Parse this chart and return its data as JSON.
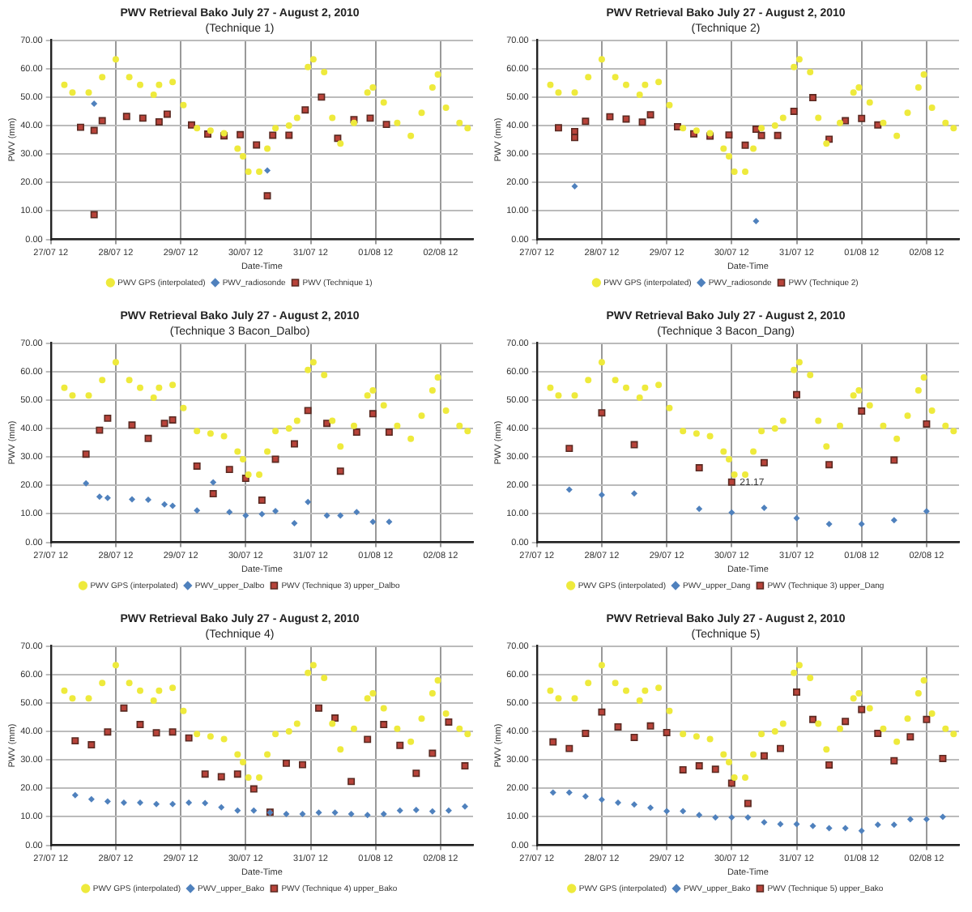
{
  "chart_data": [
    {
      "type": "scatter",
      "title": "PWV Retrieval Bako July 27 - August 2, 2010",
      "subtitle": "(Technique 1)",
      "xlabel": "Date-Time",
      "ylabel": "PWV (mm)",
      "xlim": [
        "2010-07-27T12:00",
        "2010-08-03T00:00"
      ],
      "xticks": [
        {
          "value": "2010-07-27T12:00",
          "label": "27/07 12"
        },
        {
          "value": "2010-07-28T12:00",
          "label": "28/07 12"
        },
        {
          "value": "2010-07-29T12:00",
          "label": "29/07 12"
        },
        {
          "value": "2010-07-30T12:00",
          "label": "30/07 12"
        },
        {
          "value": "2010-07-31T12:00",
          "label": "31/07 12"
        },
        {
          "value": "2010-08-01T12:00",
          "label": "01/08 12"
        },
        {
          "value": "2010-08-02T12:00",
          "label": "02/08 12"
        }
      ],
      "ylim": [
        0,
        70
      ],
      "yticks": [
        {
          "value": 0,
          "label": "0.00"
        },
        {
          "value": 10,
          "label": "10.00"
        },
        {
          "value": 20,
          "label": "20.00"
        },
        {
          "value": 30,
          "label": "30.00"
        },
        {
          "value": 40,
          "label": "40.00"
        },
        {
          "value": 50,
          "label": "50.00"
        },
        {
          "value": 60,
          "label": "60.00"
        },
        {
          "value": 70,
          "label": "70.00"
        }
      ],
      "grid": true,
      "legend": "bottom",
      "series": [
        {
          "name": "PWV GPS (interpolated)",
          "color": "#eeea3c",
          "marker": "circle",
          "x": [
            "2010-07-27T17:00",
            "2010-07-27T20:00",
            "2010-07-28T02:00",
            "2010-07-28T07:00",
            "2010-07-28T12:00",
            "2010-07-28T17:00",
            "2010-07-28T21:00",
            "2010-07-29T02:00",
            "2010-07-29T04:00",
            "2010-07-29T09:00",
            "2010-07-29T13:00",
            "2010-07-29T18:00",
            "2010-07-29T23:00",
            "2010-07-30T04:00",
            "2010-07-30T09:00",
            "2010-07-30T11:00",
            "2010-07-30T13:00",
            "2010-07-30T17:00",
            "2010-07-30T20:00",
            "2010-07-30T23:00",
            "2010-07-31T04:00",
            "2010-07-31T07:00",
            "2010-07-31T11:00",
            "2010-07-31T13:00",
            "2010-07-31T17:00",
            "2010-07-31T20:00",
            "2010-07-31T23:00",
            "2010-08-01T04:00",
            "2010-08-01T09:00",
            "2010-08-01T11:00",
            "2010-08-01T15:00",
            "2010-08-01T20:00",
            "2010-08-02T01:00",
            "2010-08-02T05:00",
            "2010-08-02T09:00",
            "2010-08-02T11:00",
            "2010-08-02T14:00",
            "2010-08-02T19:00",
            "2010-08-02T22:00"
          ],
          "values": [
            54.3,
            51.6,
            51.6,
            57,
            63.3,
            57,
            54.3,
            50.8,
            54.3,
            55.3,
            47.2,
            39.1,
            38.2,
            37.3,
            31.9,
            29.2,
            23.8,
            23.8,
            31.9,
            39.1,
            40,
            42.7,
            60.6,
            63.3,
            58.8,
            42.7,
            33.7,
            40.9,
            51.6,
            53.4,
            48.1,
            40.9,
            36.4,
            44.5,
            53.4,
            57.9,
            46.3,
            40.9,
            39.1
          ]
        },
        {
          "name": "PWV_radiosonde",
          "color": "#4f81bd",
          "marker": "diamond",
          "x": [
            "2010-07-28T04:00",
            "2010-07-30T20:00"
          ],
          "values": [
            47.7,
            24.2
          ]
        },
        {
          "name": "PWV (Technique 1)",
          "color": "#b8433a",
          "marker": "square",
          "x": [
            "2010-07-27T23:00",
            "2010-07-28T04:00",
            "2010-07-28T04:00",
            "2010-07-28T07:00",
            "2010-07-28T16:00",
            "2010-07-28T22:00",
            "2010-07-29T04:00",
            "2010-07-29T07:00",
            "2010-07-29T16:00",
            "2010-07-29T22:00",
            "2010-07-30T04:00",
            "2010-07-30T10:00",
            "2010-07-30T16:00",
            "2010-07-30T20:00",
            "2010-07-30T22:00",
            "2010-07-31T04:00",
            "2010-07-31T10:00",
            "2010-07-31T16:00",
            "2010-07-31T22:00",
            "2010-08-01T04:00",
            "2010-08-01T10:00",
            "2010-08-01T16:00"
          ],
          "values": [
            39.4,
            38.3,
            8.7,
            41.7,
            43.2,
            42.6,
            41.3,
            44,
            40.2,
            37,
            36.4,
            36.8,
            33.2,
            15.3,
            36.6,
            36.6,
            45.5,
            50,
            35.5,
            42.1,
            42.6,
            40.4
          ]
        }
      ]
    },
    {
      "type": "scatter",
      "title": "PWV Retrieval Bako July 27 - August 2, 2010",
      "subtitle": "(Technique 2)",
      "xlabel": "Date-Time",
      "ylabel": "PWV (mm)",
      "xlim": [
        "2010-07-27T12:00",
        "2010-08-03T00:00"
      ],
      "xticks": [
        {
          "value": "2010-07-27T12:00",
          "label": "27/07 12"
        },
        {
          "value": "2010-07-28T12:00",
          "label": "28/07 12"
        },
        {
          "value": "2010-07-29T12:00",
          "label": "29/07 12"
        },
        {
          "value": "2010-07-30T12:00",
          "label": "30/07 12"
        },
        {
          "value": "2010-07-31T12:00",
          "label": "31/07 12"
        },
        {
          "value": "2010-08-01T12:00",
          "label": "01/08 12"
        },
        {
          "value": "2010-08-02T12:00",
          "label": "02/08 12"
        }
      ],
      "ylim": [
        0,
        70
      ],
      "yticks": [
        {
          "value": 0,
          "label": "0.00"
        },
        {
          "value": 10,
          "label": "10.00"
        },
        {
          "value": 20,
          "label": "20.00"
        },
        {
          "value": 30,
          "label": "30.00"
        },
        {
          "value": 40,
          "label": "40.00"
        },
        {
          "value": 50,
          "label": "50.00"
        },
        {
          "value": 60,
          "label": "60.00"
        },
        {
          "value": 70,
          "label": "70.00"
        }
      ],
      "grid": true,
      "legend": "bottom",
      "series": [
        {
          "name": "PWV GPS (interpolated)",
          "color": "#eeea3c",
          "marker": "circle",
          "x": [
            "2010-07-27T17:00",
            "2010-07-27T20:00",
            "2010-07-28T02:00",
            "2010-07-28T07:00",
            "2010-07-28T12:00",
            "2010-07-28T17:00",
            "2010-07-28T21:00",
            "2010-07-29T02:00",
            "2010-07-29T04:00",
            "2010-07-29T09:00",
            "2010-07-29T13:00",
            "2010-07-29T18:00",
            "2010-07-29T23:00",
            "2010-07-30T04:00",
            "2010-07-30T09:00",
            "2010-07-30T11:00",
            "2010-07-30T13:00",
            "2010-07-30T17:00",
            "2010-07-30T20:00",
            "2010-07-30T23:00",
            "2010-07-31T04:00",
            "2010-07-31T07:00",
            "2010-07-31T11:00",
            "2010-07-31T13:00",
            "2010-07-31T17:00",
            "2010-07-31T20:00",
            "2010-07-31T23:00",
            "2010-08-01T04:00",
            "2010-08-01T09:00",
            "2010-08-01T11:00",
            "2010-08-01T15:00",
            "2010-08-01T20:00",
            "2010-08-02T01:00",
            "2010-08-02T05:00",
            "2010-08-02T09:00",
            "2010-08-02T11:00",
            "2010-08-02T14:00",
            "2010-08-02T19:00",
            "2010-08-02T22:00"
          ],
          "values": [
            54.3,
            51.6,
            51.6,
            57,
            63.3,
            57,
            54.3,
            50.8,
            54.3,
            55.3,
            47.2,
            39.1,
            38.2,
            37.3,
            31.9,
            29.2,
            23.8,
            23.8,
            31.9,
            39.1,
            40,
            42.7,
            60.6,
            63.3,
            58.8,
            42.7,
            33.7,
            40.9,
            51.6,
            53.4,
            48.1,
            40.9,
            36.4,
            44.5,
            53.4,
            57.9,
            46.3,
            40.9,
            39.1
          ]
        },
        {
          "name": "PWV_radiosonde",
          "color": "#4f81bd",
          "marker": "diamond",
          "x": [
            "2010-07-28T02:00",
            "2010-07-30T21:00"
          ],
          "values": [
            18.7,
            6.4
          ]
        },
        {
          "name": "PWV (Technique 2)",
          "color": "#b8433a",
          "marker": "square",
          "x": [
            "2010-07-27T20:00",
            "2010-07-28T02:00",
            "2010-07-28T02:00",
            "2010-07-28T06:00",
            "2010-07-28T15:00",
            "2010-07-28T21:00",
            "2010-07-29T03:00",
            "2010-07-29T06:00",
            "2010-07-29T16:00",
            "2010-07-29T22:00",
            "2010-07-30T04:00",
            "2010-07-30T11:00",
            "2010-07-30T17:00",
            "2010-07-30T21:00",
            "2010-07-30T23:00",
            "2010-07-31T05:00",
            "2010-07-31T11:00",
            "2010-07-31T18:00",
            "2010-08-01T00:00",
            "2010-08-01T06:00",
            "2010-08-01T12:00",
            "2010-08-01T18:00"
          ],
          "values": [
            39.2,
            37.9,
            35.8,
            41.5,
            43.1,
            42.3,
            41.2,
            43.8,
            39.6,
            37.1,
            36.3,
            36.7,
            33.1,
            38.7,
            36.5,
            36.5,
            45,
            49.8,
            35.2,
            41.7,
            42.5,
            40.2
          ]
        }
      ]
    },
    {
      "type": "scatter",
      "title": "PWV Retrieval Bako July 27 - August 2, 2010",
      "subtitle": "(Technique 3 Bacon_Dalbo)",
      "xlabel": "Date-Time",
      "ylabel": "PWV (mm)",
      "xlim": [
        "2010-07-27T12:00",
        "2010-08-03T00:00"
      ],
      "xticks": [
        {
          "value": "2010-07-27T12:00",
          "label": "27/07 12"
        },
        {
          "value": "2010-07-28T12:00",
          "label": "28/07 12"
        },
        {
          "value": "2010-07-29T12:00",
          "label": "29/07 12"
        },
        {
          "value": "2010-07-30T12:00",
          "label": "30/07 12"
        },
        {
          "value": "2010-07-31T12:00",
          "label": "31/07 12"
        },
        {
          "value": "2010-08-01T12:00",
          "label": "01/08 12"
        },
        {
          "value": "2010-08-02T12:00",
          "label": "02/08 12"
        }
      ],
      "ylim": [
        0,
        70
      ],
      "yticks": [
        {
          "value": 0,
          "label": "0.00"
        },
        {
          "value": 10,
          "label": "10.00"
        },
        {
          "value": 20,
          "label": "20.00"
        },
        {
          "value": 30,
          "label": "30.00"
        },
        {
          "value": 40,
          "label": "40.00"
        },
        {
          "value": 50,
          "label": "50.00"
        },
        {
          "value": 60,
          "label": "60.00"
        },
        {
          "value": 70,
          "label": "70.00"
        }
      ],
      "grid": true,
      "legend": "bottom",
      "series": [
        {
          "name": "PWV GPS (interpolated)",
          "color": "#eeea3c",
          "marker": "circle",
          "x": [
            "2010-07-27T17:00",
            "2010-07-27T20:00",
            "2010-07-28T02:00",
            "2010-07-28T07:00",
            "2010-07-28T12:00",
            "2010-07-28T17:00",
            "2010-07-28T21:00",
            "2010-07-29T02:00",
            "2010-07-29T04:00",
            "2010-07-29T09:00",
            "2010-07-29T13:00",
            "2010-07-29T18:00",
            "2010-07-29T23:00",
            "2010-07-30T04:00",
            "2010-07-30T09:00",
            "2010-07-30T11:00",
            "2010-07-30T13:00",
            "2010-07-30T17:00",
            "2010-07-30T20:00",
            "2010-07-30T23:00",
            "2010-07-31T04:00",
            "2010-07-31T07:00",
            "2010-07-31T11:00",
            "2010-07-31T13:00",
            "2010-07-31T17:00",
            "2010-07-31T20:00",
            "2010-07-31T23:00",
            "2010-08-01T04:00",
            "2010-08-01T09:00",
            "2010-08-01T11:00",
            "2010-08-01T15:00",
            "2010-08-01T20:00",
            "2010-08-02T01:00",
            "2010-08-02T05:00",
            "2010-08-02T09:00",
            "2010-08-02T11:00",
            "2010-08-02T14:00",
            "2010-08-02T19:00",
            "2010-08-02T22:00"
          ],
          "values": [
            54.3,
            51.6,
            51.6,
            57,
            63.3,
            57,
            54.3,
            50.8,
            54.3,
            55.3,
            47.2,
            39.1,
            38.2,
            37.3,
            31.9,
            29.2,
            23.8,
            23.8,
            31.9,
            39.1,
            40,
            42.7,
            60.6,
            63.3,
            58.8,
            42.7,
            33.7,
            40.9,
            51.6,
            53.4,
            48.1,
            40.9,
            36.4,
            44.5,
            53.4,
            57.9,
            46.3,
            40.9,
            39.1
          ]
        },
        {
          "name": "PWV_upper_Dalbo",
          "color": "#4f81bd",
          "marker": "diamond",
          "x": [
            "2010-07-28T01:00",
            "2010-07-28T06:00",
            "2010-07-28T09:00",
            "2010-07-28T18:00",
            "2010-07-29T00:00",
            "2010-07-29T06:00",
            "2010-07-29T09:00",
            "2010-07-29T18:00",
            "2010-07-30T00:00",
            "2010-07-30T06:00",
            "2010-07-30T12:00",
            "2010-07-30T18:00",
            "2010-07-30T23:00",
            "2010-07-31T06:00",
            "2010-07-31T11:00",
            "2010-07-31T18:00",
            "2010-07-31T23:00",
            "2010-08-01T05:00",
            "2010-08-01T11:00",
            "2010-08-01T17:00"
          ],
          "values": [
            20.7,
            16,
            15.6,
            15.1,
            15,
            13.3,
            12.8,
            11.2,
            21.1,
            10.6,
            9.4,
            9.9,
            11,
            6.7,
            14.2,
            9.4,
            9.4,
            10.6,
            7.2,
            7.2
          ]
        },
        {
          "name": "PWV (Technique 3) upper_Dalbo",
          "color": "#b8433a",
          "marker": "square",
          "x": [
            "2010-07-28T01:00",
            "2010-07-28T06:00",
            "2010-07-28T09:00",
            "2010-07-28T18:00",
            "2010-07-29T00:00",
            "2010-07-29T06:00",
            "2010-07-29T09:00",
            "2010-07-29T18:00",
            "2010-07-30T00:00",
            "2010-07-30T06:00",
            "2010-07-30T12:00",
            "2010-07-30T18:00",
            "2010-07-30T23:00",
            "2010-07-31T06:00",
            "2010-07-31T11:00",
            "2010-07-31T18:00",
            "2010-07-31T23:00",
            "2010-08-01T05:00",
            "2010-08-01T11:00",
            "2010-08-01T17:00"
          ],
          "values": [
            31,
            39.4,
            43.6,
            41.2,
            36.5,
            41.8,
            43,
            26.8,
            17.1,
            25.6,
            22.5,
            14.8,
            29.2,
            34.6,
            46.3,
            41.8,
            25,
            38.7,
            45.2,
            38.7
          ]
        }
      ]
    },
    {
      "type": "scatter",
      "title": "PWV Retrieval Bako July 27 - August 2, 2010",
      "subtitle": "(Technique 3 Bacon_Dang)",
      "xlabel": "Date-Time",
      "ylabel": "PWV (mm)",
      "xlim": [
        "2010-07-27T12:00",
        "2010-08-03T00:00"
      ],
      "xticks": [
        {
          "value": "2010-07-27T12:00",
          "label": "27/07 12"
        },
        {
          "value": "2010-07-28T12:00",
          "label": "28/07 12"
        },
        {
          "value": "2010-07-29T12:00",
          "label": "29/07 12"
        },
        {
          "value": "2010-07-30T12:00",
          "label": "30/07 12"
        },
        {
          "value": "2010-07-31T12:00",
          "label": "31/07 12"
        },
        {
          "value": "2010-08-01T12:00",
          "label": "01/08 12"
        },
        {
          "value": "2010-08-02T12:00",
          "label": "02/08 12"
        }
      ],
      "ylim": [
        0,
        70
      ],
      "yticks": [
        {
          "value": 0,
          "label": "0.00"
        },
        {
          "value": 10,
          "label": "10.00"
        },
        {
          "value": 20,
          "label": "20.00"
        },
        {
          "value": 30,
          "label": "30.00"
        },
        {
          "value": 40,
          "label": "40.00"
        },
        {
          "value": 50,
          "label": "50.00"
        },
        {
          "value": 60,
          "label": "60.00"
        },
        {
          "value": 70,
          "label": "70.00"
        }
      ],
      "grid": true,
      "legend": "bottom",
      "annotations": [
        {
          "text": "21.17",
          "x": "2010-07-30T12:00",
          "y": 21.17
        }
      ],
      "series": [
        {
          "name": "PWV GPS (interpolated)",
          "color": "#eeea3c",
          "marker": "circle",
          "x": [
            "2010-07-27T17:00",
            "2010-07-27T20:00",
            "2010-07-28T02:00",
            "2010-07-28T07:00",
            "2010-07-28T12:00",
            "2010-07-28T17:00",
            "2010-07-28T21:00",
            "2010-07-29T02:00",
            "2010-07-29T04:00",
            "2010-07-29T09:00",
            "2010-07-29T13:00",
            "2010-07-29T18:00",
            "2010-07-29T23:00",
            "2010-07-30T04:00",
            "2010-07-30T09:00",
            "2010-07-30T11:00",
            "2010-07-30T13:00",
            "2010-07-30T17:00",
            "2010-07-30T20:00",
            "2010-07-30T23:00",
            "2010-07-31T04:00",
            "2010-07-31T07:00",
            "2010-07-31T11:00",
            "2010-07-31T13:00",
            "2010-07-31T17:00",
            "2010-07-31T20:00",
            "2010-07-31T23:00",
            "2010-08-01T04:00",
            "2010-08-01T09:00",
            "2010-08-01T11:00",
            "2010-08-01T15:00",
            "2010-08-01T20:00",
            "2010-08-02T01:00",
            "2010-08-02T05:00",
            "2010-08-02T09:00",
            "2010-08-02T11:00",
            "2010-08-02T14:00",
            "2010-08-02T19:00",
            "2010-08-02T22:00"
          ],
          "values": [
            54.3,
            51.6,
            51.6,
            57,
            63.3,
            57,
            54.3,
            50.8,
            54.3,
            55.3,
            47.2,
            39.1,
            38.2,
            37.3,
            31.9,
            29.2,
            23.8,
            23.8,
            31.9,
            39.1,
            40,
            42.7,
            60.6,
            63.3,
            58.8,
            42.7,
            33.7,
            40.9,
            51.6,
            53.4,
            48.1,
            40.9,
            36.4,
            44.5,
            53.4,
            57.9,
            46.3,
            40.9,
            39.1
          ]
        },
        {
          "name": "PWV_upper_Dang",
          "color": "#4f81bd",
          "marker": "diamond",
          "x": [
            "2010-07-28T00:00",
            "2010-07-28T12:00",
            "2010-07-29T00:00",
            "2010-07-30T00:00",
            "2010-07-30T12:00",
            "2010-07-31T00:00",
            "2010-07-31T12:00",
            "2010-08-01T00:00",
            "2010-08-01T12:00",
            "2010-08-02T00:00",
            "2010-08-02T12:00"
          ],
          "values": [
            18.5,
            16.7,
            17.2,
            11.8,
            10.5,
            12.1,
            8.5,
            6.4,
            6.4,
            7.8,
            10.9
          ]
        },
        {
          "name": "PWV (Technique 3) upper_Dang",
          "color": "#b8433a",
          "marker": "square",
          "x": [
            "2010-07-28T00:00",
            "2010-07-28T12:00",
            "2010-07-29T00:00",
            "2010-07-30T00:00",
            "2010-07-30T12:00",
            "2010-07-31T00:00",
            "2010-07-31T12:00",
            "2010-08-01T00:00",
            "2010-08-01T12:00",
            "2010-08-02T00:00",
            "2010-08-02T12:00"
          ],
          "values": [
            33,
            45.5,
            34.3,
            26.2,
            21.17,
            28,
            51.9,
            27.3,
            46.1,
            28.9,
            41.6
          ]
        }
      ]
    },
    {
      "type": "scatter",
      "title": "PWV Retrieval Bako July 27 - August 2, 2010",
      "subtitle": "(Technique 4)",
      "xlabel": "Date-Time",
      "ylabel": "PWV (mm)",
      "xlim": [
        "2010-07-27T12:00",
        "2010-08-03T00:00"
      ],
      "xticks": [
        {
          "value": "2010-07-27T12:00",
          "label": "27/07 12"
        },
        {
          "value": "2010-07-28T12:00",
          "label": "28/07 12"
        },
        {
          "value": "2010-07-29T12:00",
          "label": "29/07 12"
        },
        {
          "value": "2010-07-30T12:00",
          "label": "30/07 12"
        },
        {
          "value": "2010-07-31T12:00",
          "label": "31/07 12"
        },
        {
          "value": "2010-08-01T12:00",
          "label": "01/08 12"
        },
        {
          "value": "2010-08-02T12:00",
          "label": "02/08 12"
        }
      ],
      "ylim": [
        0,
        70
      ],
      "yticks": [
        {
          "value": 0,
          "label": "0.00"
        },
        {
          "value": 10,
          "label": "10.00"
        },
        {
          "value": 20,
          "label": "20.00"
        },
        {
          "value": 30,
          "label": "30.00"
        },
        {
          "value": 40,
          "label": "40.00"
        },
        {
          "value": 50,
          "label": "50.00"
        },
        {
          "value": 60,
          "label": "60.00"
        },
        {
          "value": 70,
          "label": "70.00"
        }
      ],
      "grid": true,
      "legend": "bottom",
      "series": [
        {
          "name": "PWV GPS (interpolated)",
          "color": "#eeea3c",
          "marker": "circle",
          "x": [
            "2010-07-27T17:00",
            "2010-07-27T20:00",
            "2010-07-28T02:00",
            "2010-07-28T07:00",
            "2010-07-28T12:00",
            "2010-07-28T17:00",
            "2010-07-28T21:00",
            "2010-07-29T02:00",
            "2010-07-29T04:00",
            "2010-07-29T09:00",
            "2010-07-29T13:00",
            "2010-07-29T18:00",
            "2010-07-29T23:00",
            "2010-07-30T04:00",
            "2010-07-30T09:00",
            "2010-07-30T11:00",
            "2010-07-30T13:00",
            "2010-07-30T17:00",
            "2010-07-30T20:00",
            "2010-07-30T23:00",
            "2010-07-31T04:00",
            "2010-07-31T07:00",
            "2010-07-31T11:00",
            "2010-07-31T13:00",
            "2010-07-31T17:00",
            "2010-07-31T20:00",
            "2010-07-31T23:00",
            "2010-08-01T04:00",
            "2010-08-01T09:00",
            "2010-08-01T11:00",
            "2010-08-01T15:00",
            "2010-08-01T20:00",
            "2010-08-02T01:00",
            "2010-08-02T05:00",
            "2010-08-02T09:00",
            "2010-08-02T11:00",
            "2010-08-02T14:00",
            "2010-08-02T19:00",
            "2010-08-02T22:00"
          ],
          "values": [
            54.3,
            51.6,
            51.6,
            57,
            63.3,
            57,
            54.3,
            50.8,
            54.3,
            55.3,
            47.2,
            39.1,
            38.2,
            37.3,
            31.9,
            29.2,
            23.8,
            23.8,
            31.9,
            39.1,
            40,
            42.7,
            60.6,
            63.3,
            58.8,
            42.7,
            33.7,
            40.9,
            51.6,
            53.4,
            48.1,
            40.9,
            36.4,
            44.5,
            53.4,
            57.9,
            46.3,
            40.9,
            39.1
          ]
        },
        {
          "name": "PWV_upper_Bako",
          "color": "#4f81bd",
          "marker": "diamond",
          "x": [
            "2010-07-27T21:00",
            "2010-07-28T03:00",
            "2010-07-28T09:00",
            "2010-07-28T15:00",
            "2010-07-28T21:00",
            "2010-07-29T03:00",
            "2010-07-29T09:00",
            "2010-07-29T15:00",
            "2010-07-29T21:00",
            "2010-07-30T03:00",
            "2010-07-30T09:00",
            "2010-07-30T15:00",
            "2010-07-30T21:00",
            "2010-07-31T03:00",
            "2010-07-31T09:00",
            "2010-07-31T15:00",
            "2010-07-31T21:00",
            "2010-08-01T03:00",
            "2010-08-01T09:00",
            "2010-08-01T15:00",
            "2010-08-01T21:00",
            "2010-08-02T03:00",
            "2010-08-02T09:00",
            "2010-08-02T15:00",
            "2010-08-02T21:00"
          ],
          "values": [
            17.6,
            16.2,
            15.4,
            15,
            15,
            14.5,
            14.5,
            15,
            14.8,
            13.3,
            12.2,
            12.2,
            11.5,
            11,
            11,
            11.5,
            11.5,
            11,
            10.6,
            11,
            12.2,
            12.4,
            11.9,
            12.2,
            13.6
          ]
        },
        {
          "name": "PWV (Technique 4) upper_Bako",
          "color": "#b8433a",
          "marker": "square",
          "x": [
            "2010-07-27T21:00",
            "2010-07-28T03:00",
            "2010-07-28T09:00",
            "2010-07-28T15:00",
            "2010-07-28T21:00",
            "2010-07-29T03:00",
            "2010-07-29T09:00",
            "2010-07-29T15:00",
            "2010-07-29T21:00",
            "2010-07-30T03:00",
            "2010-07-30T09:00",
            "2010-07-30T15:00",
            "2010-07-30T21:00",
            "2010-07-31T03:00",
            "2010-07-31T09:00",
            "2010-07-31T15:00",
            "2010-07-31T21:00",
            "2010-08-01T03:00",
            "2010-08-01T09:00",
            "2010-08-01T15:00",
            "2010-08-01T21:00",
            "2010-08-02T03:00",
            "2010-08-02T09:00",
            "2010-08-02T15:00",
            "2010-08-02T21:00"
          ],
          "values": [
            36.7,
            35.3,
            39.8,
            48.2,
            42.4,
            39.5,
            39.8,
            37.7,
            25,
            24.1,
            25,
            19.8,
            11.6,
            28.8,
            28.3,
            48.2,
            44.7,
            22.4,
            37.2,
            42.4,
            35.1,
            25.3,
            32.3,
            43.3,
            27.9
          ]
        }
      ]
    },
    {
      "type": "scatter",
      "title": "PWV Retrieval Bako July 27 - August 2, 2010",
      "subtitle": "(Technique 5)",
      "xlabel": "Date-Time",
      "ylabel": "PWV (mm)",
      "xlim": [
        "2010-07-27T12:00",
        "2010-08-03T00:00"
      ],
      "xticks": [
        {
          "value": "2010-07-27T12:00",
          "label": "27/07 12"
        },
        {
          "value": "2010-07-28T12:00",
          "label": "28/07 12"
        },
        {
          "value": "2010-07-29T12:00",
          "label": "29/07 12"
        },
        {
          "value": "2010-07-30T12:00",
          "label": "30/07 12"
        },
        {
          "value": "2010-07-31T12:00",
          "label": "31/07 12"
        },
        {
          "value": "2010-08-01T12:00",
          "label": "01/08 12"
        },
        {
          "value": "2010-08-02T12:00",
          "label": "02/08 12"
        }
      ],
      "ylim": [
        0,
        70
      ],
      "yticks": [
        {
          "value": 0,
          "label": "0.00"
        },
        {
          "value": 10,
          "label": "10.00"
        },
        {
          "value": 20,
          "label": "20.00"
        },
        {
          "value": 30,
          "label": "30.00"
        },
        {
          "value": 40,
          "label": "40.00"
        },
        {
          "value": 50,
          "label": "50.00"
        },
        {
          "value": 60,
          "label": "60.00"
        },
        {
          "value": 70,
          "label": "70.00"
        }
      ],
      "grid": true,
      "legend": "bottom",
      "series": [
        {
          "name": "PWV GPS (interpolated)",
          "color": "#eeea3c",
          "marker": "circle",
          "x": [
            "2010-07-27T17:00",
            "2010-07-27T20:00",
            "2010-07-28T02:00",
            "2010-07-28T07:00",
            "2010-07-28T12:00",
            "2010-07-28T17:00",
            "2010-07-28T21:00",
            "2010-07-29T02:00",
            "2010-07-29T04:00",
            "2010-07-29T09:00",
            "2010-07-29T13:00",
            "2010-07-29T18:00",
            "2010-07-29T23:00",
            "2010-07-30T04:00",
            "2010-07-30T09:00",
            "2010-07-30T11:00",
            "2010-07-30T13:00",
            "2010-07-30T17:00",
            "2010-07-30T20:00",
            "2010-07-30T23:00",
            "2010-07-31T04:00",
            "2010-07-31T07:00",
            "2010-07-31T11:00",
            "2010-07-31T13:00",
            "2010-07-31T17:00",
            "2010-07-31T20:00",
            "2010-07-31T23:00",
            "2010-08-01T04:00",
            "2010-08-01T09:00",
            "2010-08-01T11:00",
            "2010-08-01T15:00",
            "2010-08-01T20:00",
            "2010-08-02T01:00",
            "2010-08-02T05:00",
            "2010-08-02T09:00",
            "2010-08-02T11:00",
            "2010-08-02T14:00",
            "2010-08-02T19:00",
            "2010-08-02T22:00"
          ],
          "values": [
            54.3,
            51.6,
            51.6,
            57,
            63.3,
            57,
            54.3,
            50.8,
            54.3,
            55.3,
            47.2,
            39.1,
            38.2,
            37.3,
            31.9,
            29.2,
            23.8,
            23.8,
            31.9,
            39.1,
            40,
            42.7,
            60.6,
            63.3,
            58.8,
            42.7,
            33.7,
            40.9,
            51.6,
            53.4,
            48.1,
            40.9,
            36.4,
            44.5,
            53.4,
            57.9,
            46.3,
            40.9,
            39.1
          ]
        },
        {
          "name": "PWV_upper_Bako",
          "color": "#4f81bd",
          "marker": "diamond",
          "x": [
            "2010-07-27T18:00",
            "2010-07-28T00:00",
            "2010-07-28T06:00",
            "2010-07-28T12:00",
            "2010-07-28T18:00",
            "2010-07-29T00:00",
            "2010-07-29T06:00",
            "2010-07-29T12:00",
            "2010-07-29T18:00",
            "2010-07-30T00:00",
            "2010-07-30T06:00",
            "2010-07-30T12:00",
            "2010-07-30T18:00",
            "2010-07-31T00:00",
            "2010-07-31T06:00",
            "2010-07-31T12:00",
            "2010-07-31T18:00",
            "2010-08-01T00:00",
            "2010-08-01T06:00",
            "2010-08-01T12:00",
            "2010-08-01T18:00",
            "2010-08-02T00:00",
            "2010-08-02T06:00",
            "2010-08-02T12:00",
            "2010-08-02T18:00"
          ],
          "values": [
            18.5,
            18.5,
            17.2,
            16,
            15,
            14.3,
            13.2,
            12,
            12,
            10.6,
            9.8,
            9.8,
            9.8,
            8.1,
            7.4,
            7.4,
            6.8,
            6,
            6,
            5.1,
            7.2,
            7.2,
            9.1,
            9.1,
            10
          ]
        },
        {
          "name": "PWV (Technique 5) upper_Bako",
          "color": "#b8433a",
          "marker": "square",
          "x": [
            "2010-07-27T18:00",
            "2010-07-28T00:00",
            "2010-07-28T06:00",
            "2010-07-28T12:00",
            "2010-07-28T18:00",
            "2010-07-29T00:00",
            "2010-07-29T06:00",
            "2010-07-29T12:00",
            "2010-07-29T18:00",
            "2010-07-30T00:00",
            "2010-07-30T06:00",
            "2010-07-30T12:00",
            "2010-07-30T18:00",
            "2010-07-31T00:00",
            "2010-07-31T06:00",
            "2010-07-31T12:00",
            "2010-07-31T18:00",
            "2010-08-01T00:00",
            "2010-08-01T06:00",
            "2010-08-01T12:00",
            "2010-08-01T18:00",
            "2010-08-02T00:00",
            "2010-08-02T06:00",
            "2010-08-02T12:00",
            "2010-08-02T18:00"
          ],
          "values": [
            36.3,
            34,
            39.3,
            46.8,
            41.6,
            37.9,
            41.9,
            39.6,
            26.5,
            27.9,
            26.7,
            21.8,
            14.7,
            31.4,
            34,
            53.8,
            44.2,
            28.2,
            43.5,
            47.7,
            39.3,
            29.7,
            38.1,
            44.2,
            30.5
          ]
        }
      ]
    }
  ]
}
